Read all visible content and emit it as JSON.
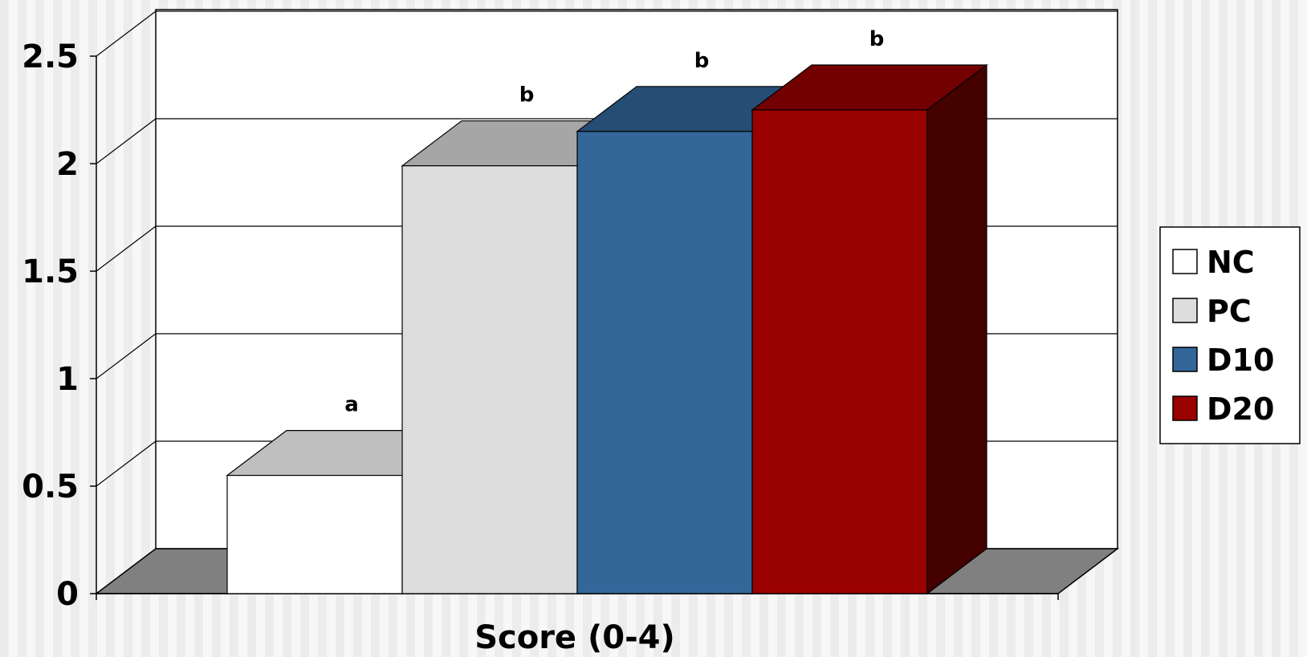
{
  "chart_data": {
    "type": "bar",
    "title": "",
    "xlabel": "Score (0-4)",
    "ylabel": "",
    "ylim": [
      0,
      2.5
    ],
    "yticks": [
      "0",
      "0.5",
      "1",
      "1.5",
      "2",
      "2.5"
    ],
    "grid": true,
    "legend_position": "right",
    "series": [
      {
        "name": "NC",
        "value": 0.55,
        "label": "a",
        "color": "#ffffff"
      },
      {
        "name": "PC",
        "value": 1.99,
        "label": "b",
        "color": "#dddddd"
      },
      {
        "name": "D10",
        "value": 2.15,
        "label": "b",
        "color": "#336699"
      },
      {
        "name": "D20",
        "value": 2.25,
        "label": "b",
        "color": "#990000"
      }
    ]
  }
}
